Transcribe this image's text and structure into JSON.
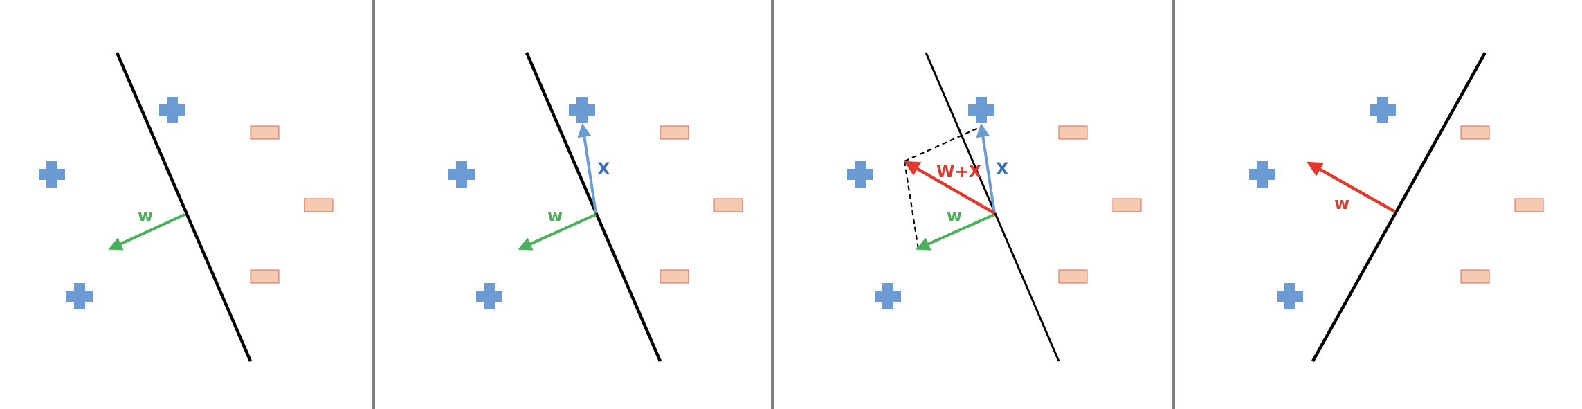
{
  "colors": {
    "background": "#ffffff",
    "divider": "#808080",
    "boundary": "#000000",
    "positive": "#6b9bd2",
    "negative_fill": "#f4cbb0",
    "negative_stroke": "#d9665a",
    "w_vector": "#4caf5b",
    "x_vector": "#6b9bd2",
    "sum_vector": "#e03a2e",
    "x_label": "#3d6fb0"
  },
  "panels": [
    {
      "id": "panel-1",
      "labels": {
        "w": "w"
      }
    },
    {
      "id": "panel-2",
      "labels": {
        "w": "w",
        "x": "X"
      }
    },
    {
      "id": "panel-3",
      "labels": {
        "w": "w",
        "x": "X",
        "sum": "W+X"
      }
    },
    {
      "id": "panel-4",
      "labels": {
        "w": "w"
      }
    }
  ]
}
